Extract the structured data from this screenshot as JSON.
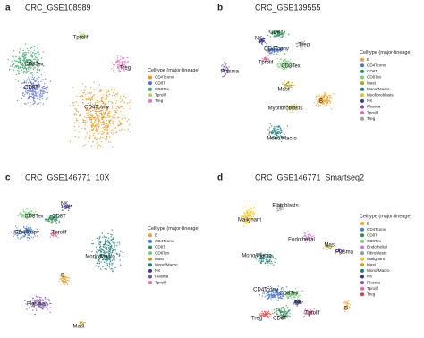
{
  "panels": [
    {
      "letter": "a",
      "title": "CRC_GSE108989",
      "legend_title": "Celltype (major-lineage)",
      "legend": [
        {
          "label": "CD4Tconv",
          "color": "#e8961e"
        },
        {
          "label": "CD8T",
          "color": "#5b6fd6"
        },
        {
          "label": "CD8Tex",
          "color": "#3fa66b"
        },
        {
          "label": "Tprolif",
          "color": "#a6d46a"
        },
        {
          "label": "Treg",
          "color": "#e377c2"
        }
      ],
      "cluster_labels": [
        "Tprolif",
        "Treg",
        "CD8Tex",
        "CD8T",
        "CD4Tconv"
      ]
    },
    {
      "letter": "b",
      "title": "CRC_GSE139555",
      "legend_title": "Celltype (major-lineage)",
      "legend": [
        {
          "label": "B",
          "color": "#f0a030"
        },
        {
          "label": "CD4Tconv",
          "color": "#4a78c8"
        },
        {
          "label": "CD8T",
          "color": "#2e8b57"
        },
        {
          "label": "CD8Tex",
          "color": "#7fc97f"
        },
        {
          "label": "Mast",
          "color": "#b8a020"
        },
        {
          "label": "Mono/Macro",
          "color": "#1b7a7a"
        },
        {
          "label": "Myofibroblasts",
          "color": "#d4c040"
        },
        {
          "label": "NK",
          "color": "#3a3a8c"
        },
        {
          "label": "Plasma",
          "color": "#7b4fb0"
        },
        {
          "label": "Tprolif",
          "color": "#e06a9a"
        },
        {
          "label": "Treg",
          "color": "#a0a0a0"
        }
      ],
      "cluster_labels": [
        "CD8T",
        "NK",
        "Treg",
        "CD4Tconv",
        "CD8Tex",
        "Tprolif",
        "Plasma",
        "Mast",
        "B",
        "Myofibroblasts",
        "Mono/Macro"
      ]
    },
    {
      "letter": "c",
      "title": "CRC_GSE146771_10X",
      "legend_title": "Celltype (major-lineage)",
      "legend": [
        {
          "label": "B",
          "color": "#f0a030"
        },
        {
          "label": "CD4Tconv",
          "color": "#4a78c8"
        },
        {
          "label": "CD8T",
          "color": "#2e8b57"
        },
        {
          "label": "CD8Tex",
          "color": "#7fc97f"
        },
        {
          "label": "Mast",
          "color": "#b8a020"
        },
        {
          "label": "Mono/Macro",
          "color": "#1b7a7a"
        },
        {
          "label": "NK",
          "color": "#3a3a8c"
        },
        {
          "label": "Plasma",
          "color": "#7b4fb0"
        },
        {
          "label": "Tprolif",
          "color": "#e06a9a"
        }
      ],
      "cluster_labels": [
        "NK",
        "CD8Tex",
        "CD8T",
        "CD4Tconv",
        "Tprolif",
        "Mono/Macro",
        "B",
        "Plasma",
        "Mast"
      ]
    },
    {
      "letter": "d",
      "title": "CRC_GSE146771_Smartseq2",
      "legend_title": "Celltype (major-lineage)",
      "legend": [
        {
          "label": "B",
          "color": "#f0a030"
        },
        {
          "label": "CD4Tconv",
          "color": "#4a78c8"
        },
        {
          "label": "CD8T",
          "color": "#2e8b57"
        },
        {
          "label": "CD8Tex",
          "color": "#7fc97f"
        },
        {
          "label": "Endothelial",
          "color": "#c678dd"
        },
        {
          "label": "Fibroblasts",
          "color": "#9a9a9a"
        },
        {
          "label": "Malignant",
          "color": "#f5c518"
        },
        {
          "label": "Mast",
          "color": "#b8a020"
        },
        {
          "label": "Mono/Macro",
          "color": "#1b7a7a"
        },
        {
          "label": "NK",
          "color": "#3a3a8c"
        },
        {
          "label": "Plasma",
          "color": "#7b4fb0"
        },
        {
          "label": "Tprolif",
          "color": "#e06a9a"
        },
        {
          "label": "Treg",
          "color": "#d04040"
        }
      ],
      "cluster_labels": [
        "Fibroblasts",
        "Malignant",
        "Endothelial",
        "Mono/Macro",
        "Mast",
        "Plasma",
        "CD4Tconv",
        "CD8Tex",
        "NK",
        "Tprolif",
        "Treg",
        "CD8T",
        "B"
      ]
    }
  ]
}
